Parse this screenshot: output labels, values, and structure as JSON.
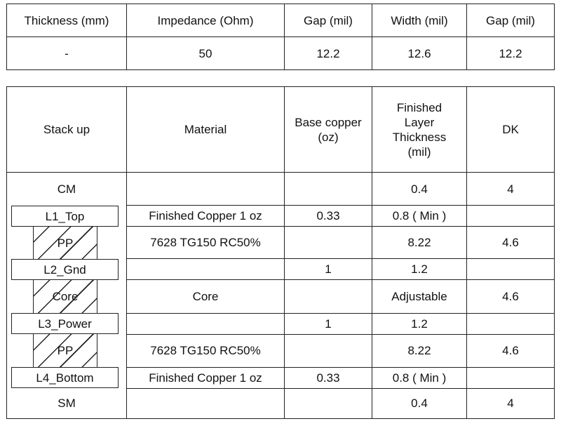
{
  "impedance_table": {
    "headers": [
      "Thickness (mm)",
      "Impedance (Ohm)",
      "Gap (mil)",
      "Width (mil)",
      "Gap (mil)"
    ],
    "values": [
      "-",
      "50",
      "12.2",
      "12.6",
      "12.2"
    ]
  },
  "stackup_table": {
    "headers": [
      "Stack up",
      "Material",
      "Base copper (oz)",
      "Finished Layer Thickness (mil)",
      "DK"
    ],
    "rows": [
      {
        "layer": "CM",
        "kind": "mask",
        "material": "",
        "base_copper": "",
        "thickness": "0.4",
        "dk": "4"
      },
      {
        "layer": "L1_Top",
        "kind": "copper",
        "material": "Finished Copper 1 oz",
        "base_copper": "0.33",
        "thickness": "0.8 ( Min )",
        "dk": ""
      },
      {
        "layer": "PP",
        "kind": "dielectric",
        "material": "7628  TG150 RC50%",
        "base_copper": "",
        "thickness": "8.22",
        "dk": "4.6"
      },
      {
        "layer": "L2_Gnd",
        "kind": "copper",
        "material": "",
        "base_copper": "1",
        "thickness": "1.2",
        "dk": ""
      },
      {
        "layer": "Core",
        "kind": "dielectric",
        "material": "Core",
        "base_copper": "",
        "thickness": "Adjustable",
        "dk": "4.6"
      },
      {
        "layer": "L3_Power",
        "kind": "copper",
        "material": "",
        "base_copper": "1",
        "thickness": "1.2",
        "dk": ""
      },
      {
        "layer": "PP",
        "kind": "dielectric",
        "material": "7628  TG150 RC50%",
        "base_copper": "",
        "thickness": "8.22",
        "dk": "4.6"
      },
      {
        "layer": "L4_Bottom",
        "kind": "copper",
        "material": "Finished Copper 1 oz",
        "base_copper": "0.33",
        "thickness": "0.8 ( Min )",
        "dk": ""
      },
      {
        "layer": "SM",
        "kind": "mask",
        "material": "",
        "base_copper": "",
        "thickness": "0.4",
        "dk": "4"
      }
    ]
  }
}
